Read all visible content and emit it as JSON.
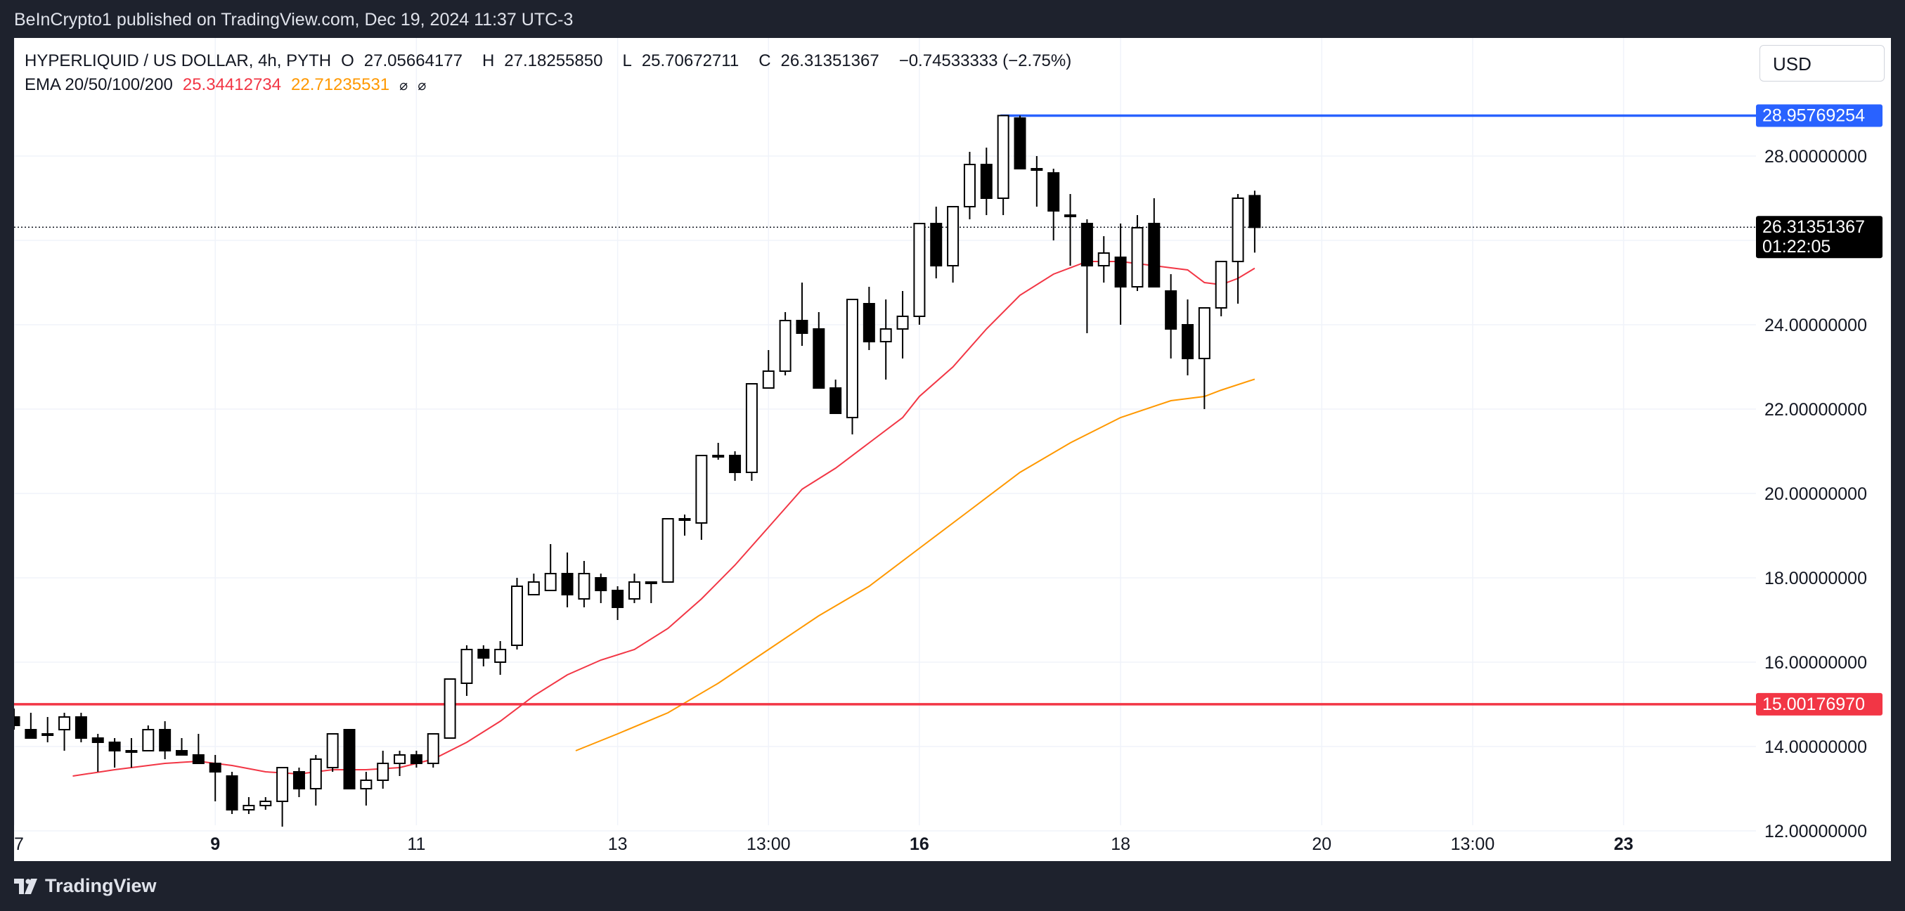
{
  "header": {
    "publisher": "BeInCrypto1 published on TradingView.com, Dec 19, 2024 11:37 UTC-3"
  },
  "legend": {
    "symbol": "HYPERLIQUID / US DOLLAR, 4h, PYTH",
    "open_label": "O",
    "open": "27.05664177",
    "high_label": "H",
    "high": "27.18255850",
    "low_label": "L",
    "low": "25.70672711",
    "close_label": "C",
    "close": "26.31351367",
    "change": "−0.74533333 (−2.75%)",
    "ema_label": "EMA 20/50/100/200",
    "ema20": "25.34412734",
    "ema50": "22.71235531",
    "ema100_icon": "hidden-value-icon",
    "ema200_icon": "hidden-value-icon"
  },
  "currency_button": "USD",
  "footer": {
    "brand": "TradingView",
    "logo_icon": "tradingview-logo-icon"
  },
  "colors": {
    "up_candle": "#ffffff",
    "down_candle": "#000000",
    "ema20": "#f23645",
    "ema50": "#ff9800",
    "resistance": "#2962ff",
    "support": "#f23645",
    "price_tag": "#000000"
  },
  "chart_data": {
    "type": "candlestick",
    "timeframe": "4h",
    "ylim": [
      10.8,
      30.8
    ],
    "y_ticks": [
      "12.00000000",
      "14.00000000",
      "16.00000000",
      "18.00000000",
      "20.00000000",
      "22.00000000",
      "24.00000000",
      "26.00000000",
      "28.00000000"
    ],
    "y_tick_values": [
      12,
      14,
      16,
      18,
      20,
      22,
      24,
      26,
      28
    ],
    "x_ticks": [
      {
        "label": "7",
        "bar": 0,
        "bold": false
      },
      {
        "label": "9",
        "bar": 12,
        "bold": true
      },
      {
        "label": "11",
        "bar": 24,
        "bold": false
      },
      {
        "label": "13",
        "bar": 36,
        "bold": false
      },
      {
        "label": "13:00",
        "bar": 45,
        "bold": false
      },
      {
        "label": "16",
        "bar": 54,
        "bold": true
      },
      {
        "label": "18",
        "bar": 66,
        "bold": false
      },
      {
        "label": "20",
        "bar": 78,
        "bold": false
      },
      {
        "label": "13:00",
        "bar": 87,
        "bold": false
      },
      {
        "label": "23",
        "bar": 96,
        "bold": true
      }
    ],
    "candles": [
      {
        "o": 14.7,
        "h": 14.9,
        "l": 14.4,
        "c": 14.5
      },
      {
        "o": 14.4,
        "h": 14.8,
        "l": 14.2,
        "c": 14.2
      },
      {
        "o": 14.3,
        "h": 14.7,
        "l": 14.1,
        "c": 14.3
      },
      {
        "o": 14.4,
        "h": 14.8,
        "l": 13.9,
        "c": 14.7
      },
      {
        "o": 14.7,
        "h": 14.8,
        "l": 14.1,
        "c": 14.2
      },
      {
        "o": 14.2,
        "h": 14.3,
        "l": 13.4,
        "c": 14.1
      },
      {
        "o": 14.1,
        "h": 14.2,
        "l": 13.5,
        "c": 13.9
      },
      {
        "o": 13.9,
        "h": 14.2,
        "l": 13.5,
        "c": 13.9
      },
      {
        "o": 13.9,
        "h": 14.5,
        "l": 13.9,
        "c": 14.4
      },
      {
        "o": 14.4,
        "h": 14.6,
        "l": 13.7,
        "c": 13.9
      },
      {
        "o": 13.9,
        "h": 14.2,
        "l": 13.8,
        "c": 13.8
      },
      {
        "o": 13.8,
        "h": 14.3,
        "l": 13.6,
        "c": 13.6
      },
      {
        "o": 13.6,
        "h": 13.8,
        "l": 12.7,
        "c": 13.4
      },
      {
        "o": 13.3,
        "h": 13.4,
        "l": 12.4,
        "c": 12.5
      },
      {
        "o": 12.5,
        "h": 12.8,
        "l": 12.4,
        "c": 12.6
      },
      {
        "o": 12.6,
        "h": 12.8,
        "l": 12.5,
        "c": 12.7
      },
      {
        "o": 12.7,
        "h": 13.5,
        "l": 12.1,
        "c": 13.5
      },
      {
        "o": 13.4,
        "h": 13.5,
        "l": 12.8,
        "c": 13.0
      },
      {
        "o": 13.0,
        "h": 13.8,
        "l": 12.6,
        "c": 13.7
      },
      {
        "o": 13.5,
        "h": 14.3,
        "l": 13.4,
        "c": 14.3
      },
      {
        "o": 14.4,
        "h": 14.4,
        "l": 13.0,
        "c": 13.0
      },
      {
        "o": 13.0,
        "h": 13.4,
        "l": 12.6,
        "c": 13.2
      },
      {
        "o": 13.2,
        "h": 13.9,
        "l": 13.0,
        "c": 13.6
      },
      {
        "o": 13.6,
        "h": 13.9,
        "l": 13.3,
        "c": 13.8
      },
      {
        "o": 13.8,
        "h": 13.9,
        "l": 13.5,
        "c": 13.6
      },
      {
        "o": 13.6,
        "h": 14.3,
        "l": 13.5,
        "c": 14.3
      },
      {
        "o": 14.2,
        "h": 15.6,
        "l": 14.2,
        "c": 15.6
      },
      {
        "o": 15.5,
        "h": 16.4,
        "l": 15.2,
        "c": 16.3
      },
      {
        "o": 16.3,
        "h": 16.4,
        "l": 15.9,
        "c": 16.1
      },
      {
        "o": 16.0,
        "h": 16.5,
        "l": 15.7,
        "c": 16.3
      },
      {
        "o": 16.4,
        "h": 18.0,
        "l": 16.3,
        "c": 17.8
      },
      {
        "o": 17.6,
        "h": 18.1,
        "l": 17.6,
        "c": 17.9
      },
      {
        "o": 17.7,
        "h": 18.8,
        "l": 17.7,
        "c": 18.1
      },
      {
        "o": 18.1,
        "h": 18.6,
        "l": 17.3,
        "c": 17.6
      },
      {
        "o": 17.5,
        "h": 18.4,
        "l": 17.3,
        "c": 18.1
      },
      {
        "o": 18.0,
        "h": 18.1,
        "l": 17.4,
        "c": 17.7
      },
      {
        "o": 17.7,
        "h": 17.8,
        "l": 17.0,
        "c": 17.3
      },
      {
        "o": 17.5,
        "h": 18.1,
        "l": 17.4,
        "c": 17.9
      },
      {
        "o": 17.9,
        "h": 17.9,
        "l": 17.4,
        "c": 17.9
      },
      {
        "o": 17.9,
        "h": 19.4,
        "l": 17.9,
        "c": 19.4
      },
      {
        "o": 19.4,
        "h": 19.5,
        "l": 19.0,
        "c": 19.4
      },
      {
        "o": 19.3,
        "h": 20.9,
        "l": 18.9,
        "c": 20.9
      },
      {
        "o": 20.9,
        "h": 21.2,
        "l": 20.8,
        "c": 20.9
      },
      {
        "o": 20.9,
        "h": 21.0,
        "l": 20.3,
        "c": 20.5
      },
      {
        "o": 20.5,
        "h": 22.6,
        "l": 20.3,
        "c": 22.6
      },
      {
        "o": 22.5,
        "h": 23.4,
        "l": 22.5,
        "c": 22.9
      },
      {
        "o": 22.9,
        "h": 24.3,
        "l": 22.8,
        "c": 24.1
      },
      {
        "o": 24.1,
        "h": 25.0,
        "l": 23.5,
        "c": 23.8
      },
      {
        "o": 23.9,
        "h": 24.3,
        "l": 22.6,
        "c": 22.5
      },
      {
        "o": 22.5,
        "h": 22.7,
        "l": 22.0,
        "c": 21.9
      },
      {
        "o": 21.8,
        "h": 24.6,
        "l": 21.4,
        "c": 24.6
      },
      {
        "o": 24.5,
        "h": 24.9,
        "l": 23.4,
        "c": 23.6
      },
      {
        "o": 23.6,
        "h": 24.6,
        "l": 22.7,
        "c": 23.9
      },
      {
        "o": 23.9,
        "h": 24.8,
        "l": 23.2,
        "c": 24.2
      },
      {
        "o": 24.2,
        "h": 26.4,
        "l": 24.0,
        "c": 26.4
      },
      {
        "o": 26.4,
        "h": 26.8,
        "l": 25.1,
        "c": 25.4
      },
      {
        "o": 25.4,
        "h": 26.8,
        "l": 25.0,
        "c": 26.8
      },
      {
        "o": 26.8,
        "h": 28.1,
        "l": 26.5,
        "c": 27.8
      },
      {
        "o": 27.8,
        "h": 28.2,
        "l": 26.6,
        "c": 27.0
      },
      {
        "o": 27.0,
        "h": 28.96,
        "l": 26.6,
        "c": 28.96
      },
      {
        "o": 28.9,
        "h": 28.96,
        "l": 27.7,
        "c": 27.7
      },
      {
        "o": 27.7,
        "h": 28.0,
        "l": 26.8,
        "c": 27.7
      },
      {
        "o": 27.6,
        "h": 27.7,
        "l": 26.0,
        "c": 26.7
      },
      {
        "o": 26.6,
        "h": 27.1,
        "l": 25.4,
        "c": 26.6
      },
      {
        "o": 26.4,
        "h": 26.5,
        "l": 23.8,
        "c": 25.4
      },
      {
        "o": 25.4,
        "h": 26.1,
        "l": 25.0,
        "c": 25.7
      },
      {
        "o": 25.6,
        "h": 26.4,
        "l": 24.0,
        "c": 24.9
      },
      {
        "o": 24.9,
        "h": 26.6,
        "l": 24.8,
        "c": 26.3
      },
      {
        "o": 26.4,
        "h": 27.0,
        "l": 24.9,
        "c": 24.9
      },
      {
        "o": 24.8,
        "h": 25.2,
        "l": 23.2,
        "c": 23.9
      },
      {
        "o": 24.0,
        "h": 24.6,
        "l": 22.8,
        "c": 23.2
      },
      {
        "o": 23.2,
        "h": 24.4,
        "l": 22.0,
        "c": 24.4
      },
      {
        "o": 24.4,
        "h": 25.5,
        "l": 24.2,
        "c": 25.5
      },
      {
        "o": 25.5,
        "h": 27.1,
        "l": 24.5,
        "c": 27.0
      },
      {
        "o": 27.06,
        "h": 27.18,
        "l": 25.71,
        "c": 26.31
      }
    ],
    "ema20": [
      {
        "bar": 3.5,
        "v": 13.3
      },
      {
        "bar": 6,
        "v": 13.45
      },
      {
        "bar": 9,
        "v": 13.6
      },
      {
        "bar": 11,
        "v": 13.65
      },
      {
        "bar": 13,
        "v": 13.55
      },
      {
        "bar": 15,
        "v": 13.4
      },
      {
        "bar": 17,
        "v": 13.35
      },
      {
        "bar": 19,
        "v": 13.45
      },
      {
        "bar": 21,
        "v": 13.45
      },
      {
        "bar": 23,
        "v": 13.5
      },
      {
        "bar": 25,
        "v": 13.7
      },
      {
        "bar": 27,
        "v": 14.1
      },
      {
        "bar": 29,
        "v": 14.6
      },
      {
        "bar": 31,
        "v": 15.2
      },
      {
        "bar": 33,
        "v": 15.7
      },
      {
        "bar": 35,
        "v": 16.05
      },
      {
        "bar": 37,
        "v": 16.3
      },
      {
        "bar": 39,
        "v": 16.8
      },
      {
        "bar": 41,
        "v": 17.5
      },
      {
        "bar": 43,
        "v": 18.3
      },
      {
        "bar": 45,
        "v": 19.2
      },
      {
        "bar": 47,
        "v": 20.1
      },
      {
        "bar": 49,
        "v": 20.6
      },
      {
        "bar": 51,
        "v": 21.2
      },
      {
        "bar": 53,
        "v": 21.8
      },
      {
        "bar": 54,
        "v": 22.3
      },
      {
        "bar": 56,
        "v": 23.0
      },
      {
        "bar": 58,
        "v": 23.9
      },
      {
        "bar": 60,
        "v": 24.7
      },
      {
        "bar": 62,
        "v": 25.2
      },
      {
        "bar": 64,
        "v": 25.5
      },
      {
        "bar": 66,
        "v": 25.5
      },
      {
        "bar": 68,
        "v": 25.4
      },
      {
        "bar": 70,
        "v": 25.3
      },
      {
        "bar": 71,
        "v": 25.0
      },
      {
        "bar": 72,
        "v": 24.95
      },
      {
        "bar": 73,
        "v": 25.1
      },
      {
        "bar": 74,
        "v": 25.34
      }
    ],
    "ema50": [
      {
        "bar": 33.5,
        "v": 13.9
      },
      {
        "bar": 36,
        "v": 14.3
      },
      {
        "bar": 39,
        "v": 14.8
      },
      {
        "bar": 42,
        "v": 15.5
      },
      {
        "bar": 45,
        "v": 16.3
      },
      {
        "bar": 48,
        "v": 17.1
      },
      {
        "bar": 51,
        "v": 17.8
      },
      {
        "bar": 54,
        "v": 18.7
      },
      {
        "bar": 57,
        "v": 19.6
      },
      {
        "bar": 60,
        "v": 20.5
      },
      {
        "bar": 63,
        "v": 21.2
      },
      {
        "bar": 66,
        "v": 21.8
      },
      {
        "bar": 69,
        "v": 22.2
      },
      {
        "bar": 71,
        "v": 22.3
      },
      {
        "bar": 72,
        "v": 22.45
      },
      {
        "bar": 74,
        "v": 22.71
      }
    ],
    "resistance": {
      "value": 28.95769254,
      "label": "28.95769254",
      "start_bar": 59
    },
    "support": {
      "value": 15.0017697,
      "label": "15.00176970"
    },
    "last_price": {
      "value": 26.31351367,
      "label": "26.31351367",
      "countdown": "01:22:05"
    }
  }
}
